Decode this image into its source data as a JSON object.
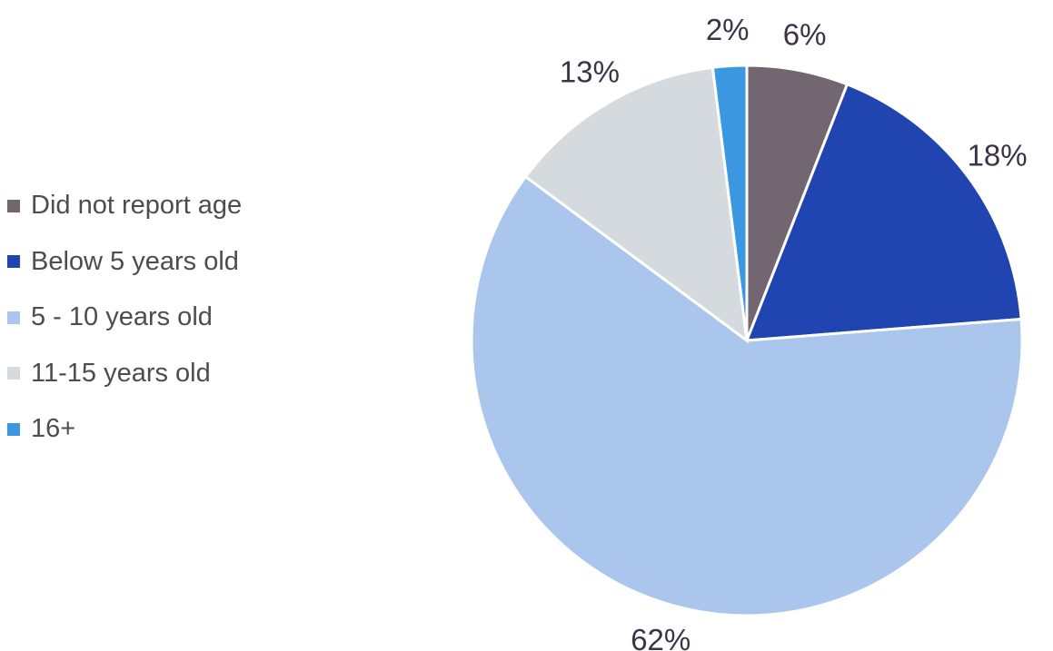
{
  "chart_data": {
    "type": "pie",
    "title": "",
    "slices": [
      {
        "label": "Did not report age",
        "value": 6,
        "display": "6%",
        "color": "#726770"
      },
      {
        "label": "Below 5 years old",
        "value": 18,
        "display": "18%",
        "color": "#2044b0"
      },
      {
        "label": "5 - 10 years old",
        "value": 62,
        "display": "62%",
        "color": "#abc6ec"
      },
      {
        "label": "11-15 years old",
        "value": 13,
        "display": "13%",
        "color": "#d5dadf"
      },
      {
        "label": "16+",
        "value": 2,
        "display": "2%",
        "color": "#3b98e0"
      }
    ],
    "legend_position": "left",
    "start_angle": "12 o'clock, clockwise"
  }
}
